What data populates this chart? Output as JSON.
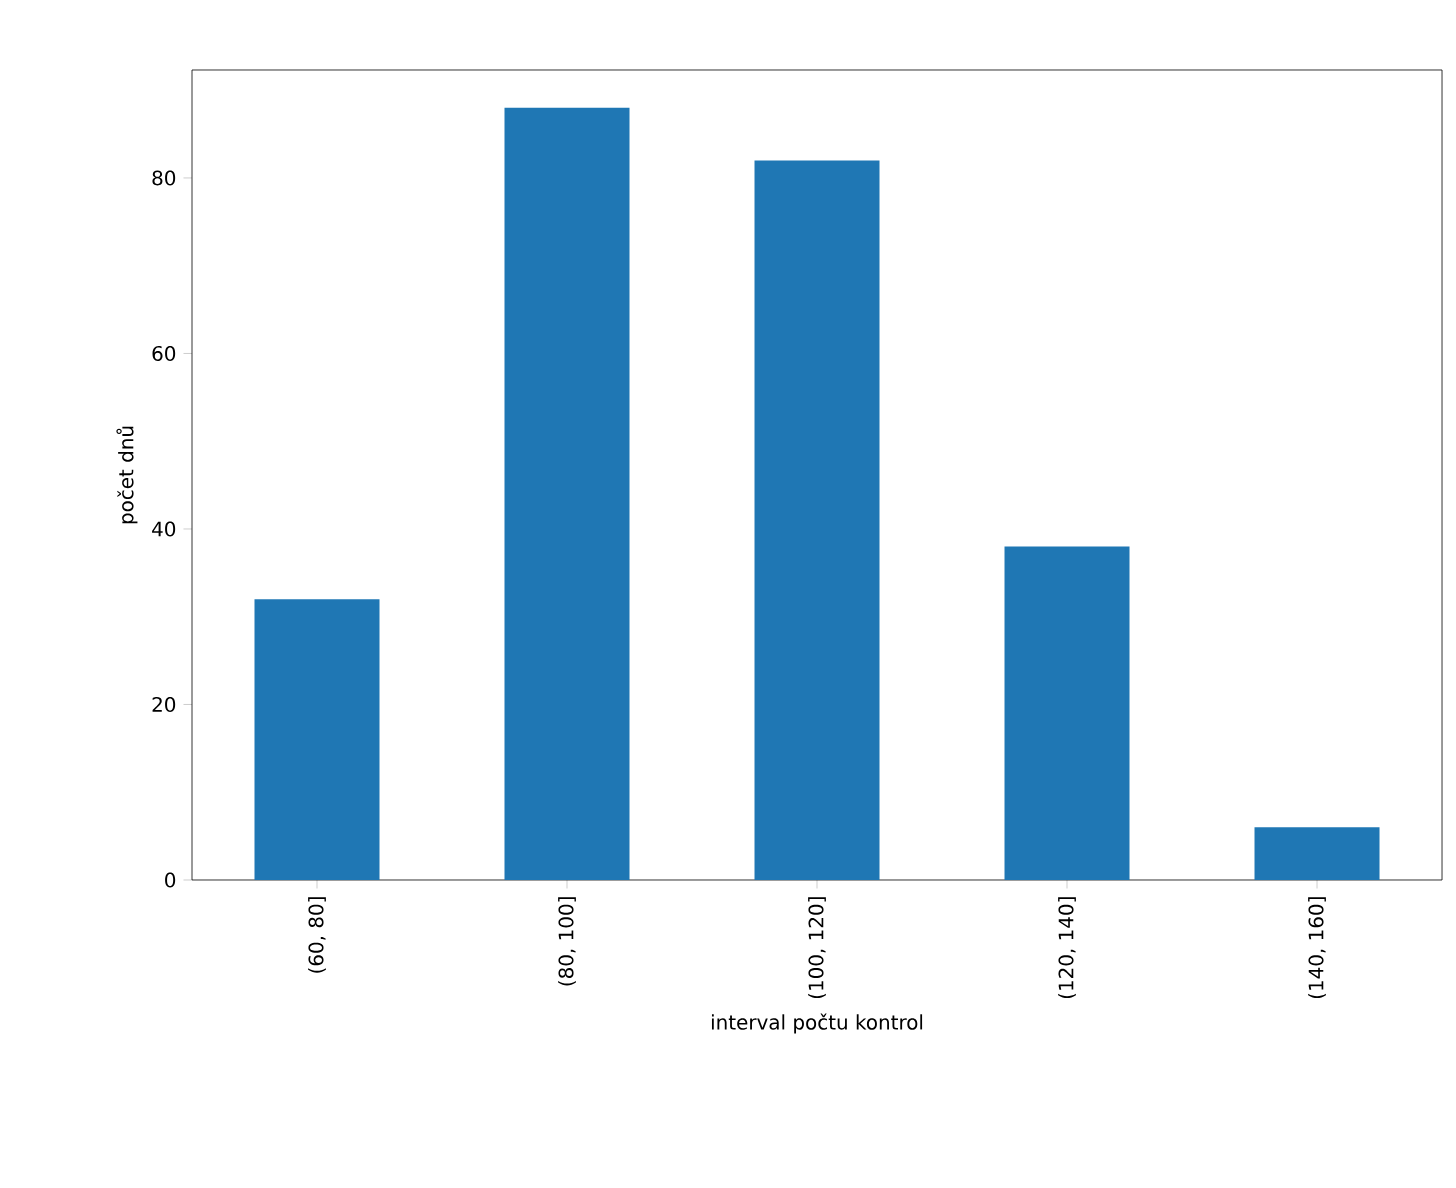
{
  "chart_data": {
    "type": "bar",
    "xlabel": "interval počtu kontrol",
    "ylabel": "počet dnů",
    "categories": [
      "(60, 80]",
      "(80, 100]",
      "(100, 120]",
      "(120, 140]",
      "(140, 160]"
    ],
    "values": [
      32,
      88,
      82,
      38,
      6
    ],
    "color": "#1f77b4",
    "ylim": [
      0,
      92.3
    ],
    "yticks": [
      0,
      20,
      40,
      60,
      80
    ]
  }
}
